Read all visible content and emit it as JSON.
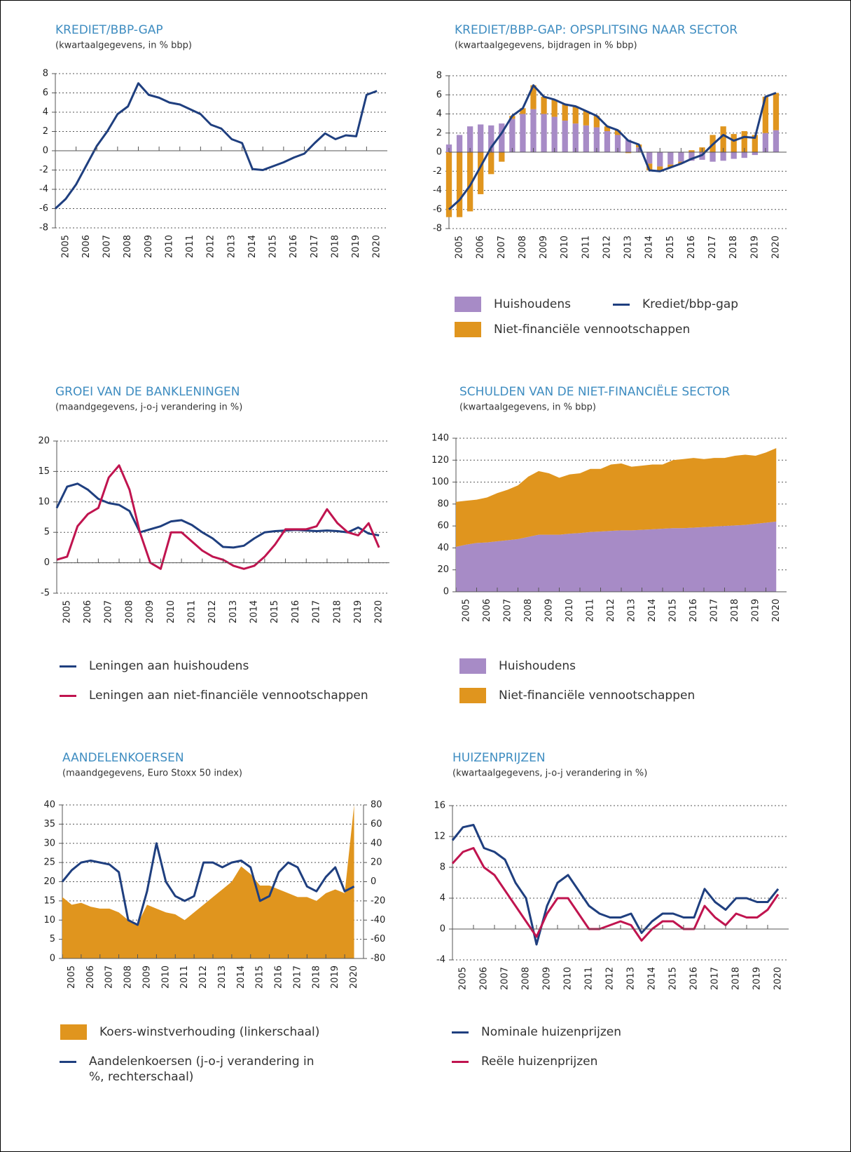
{
  "chart_data": [
    {
      "type": "line",
      "title": "KREDIET/BBP-GAP",
      "subtitle": "(kwartaalgegevens, in % bbp)",
      "x": [
        2005,
        2005.5,
        2006,
        2006.5,
        2007,
        2007.5,
        2008,
        2008.5,
        2009,
        2009.5,
        2010,
        2010.5,
        2011,
        2011.5,
        2012,
        2012.5,
        2013,
        2013.5,
        2014,
        2014.5,
        2015,
        2015.5,
        2016,
        2016.5,
        2017,
        2017.5,
        2018,
        2018.5,
        2019,
        2019.5,
        2020,
        2020.5
      ],
      "series": [
        {
          "color": "#1f3f7f",
          "values": [
            -6,
            -5,
            -3.5,
            -1.5,
            0.5,
            2,
            3.8,
            4.6,
            7,
            5.8,
            5.5,
            5,
            4.8,
            4.3,
            3.8,
            2.7,
            2.3,
            1.2,
            0.8,
            -1.9,
            -2,
            -1.6,
            -1.2,
            -0.7,
            -0.3,
            0.8,
            1.8,
            1.2,
            1.6,
            1.5,
            5.8,
            6.2
          ]
        }
      ],
      "xlim": [
        2005,
        2021
      ],
      "xticks": [
        2005,
        2006,
        2007,
        2008,
        2009,
        2010,
        2011,
        2012,
        2013,
        2014,
        2015,
        2016,
        2017,
        2018,
        2019,
        2020
      ],
      "ylim": [
        -8,
        8
      ],
      "yticks": [
        -8,
        -6,
        -4,
        -2,
        0,
        2,
        4,
        6,
        8
      ],
      "grid": true
    },
    {
      "type": "combo",
      "title": "KREDIET/BBP-GAP: OPSPLITSING NAAR SECTOR",
      "subtitle": "(kwartaalgegevens, bijdragen in % bbp)",
      "x": [
        2005,
        2005.5,
        2006,
        2006.5,
        2007,
        2007.5,
        2008,
        2008.5,
        2009,
        2009.5,
        2010,
        2010.5,
        2011,
        2011.5,
        2012,
        2012.5,
        2013,
        2013.5,
        2014,
        2014.5,
        2015,
        2015.5,
        2016,
        2016.5,
        2017,
        2017.5,
        2018,
        2018.5,
        2019,
        2019.5,
        2020,
        2020.5
      ],
      "series": [
        {
          "name": "Huishoudens",
          "style": "bar",
          "color": "#a78bc6",
          "values": [
            0.8,
            1.8,
            2.7,
            2.9,
            2.8,
            3,
            3.5,
            4,
            4.5,
            4,
            3.7,
            3.3,
            3,
            2.8,
            2.6,
            2.2,
            1.8,
            1.3,
            0.5,
            -1.2,
            -1.5,
            -1.3,
            -1,
            -0.9,
            -0.8,
            -1,
            -0.9,
            -0.7,
            -0.6,
            -0.3,
            2,
            2.3
          ]
        },
        {
          "name": "Niet-financiële vennootschappen",
          "style": "bar",
          "color": "#e0951e",
          "values": [
            -6.8,
            -6.8,
            -6.2,
            -4.4,
            -2.3,
            -1,
            0.3,
            0.6,
            2.5,
            1.8,
            1.8,
            1.7,
            1.8,
            1.5,
            1.2,
            0.5,
            0.5,
            -0.1,
            0.3,
            -0.7,
            -0.5,
            -0.3,
            -0.2,
            0.2,
            0.5,
            1.8,
            2.7,
            1.9,
            2.2,
            1.8,
            3.8,
            3.9
          ]
        },
        {
          "name": "Krediet/bbp-gap",
          "style": "line",
          "color": "#1f3f7f",
          "values": [
            -6,
            -5,
            -3.5,
            -1.5,
            0.5,
            2,
            3.8,
            4.6,
            7,
            5.8,
            5.5,
            5,
            4.8,
            4.3,
            3.8,
            2.7,
            2.3,
            1.2,
            0.8,
            -1.9,
            -2,
            -1.6,
            -1.2,
            -0.7,
            -0.3,
            0.8,
            1.8,
            1.2,
            1.6,
            1.5,
            5.8,
            6.2
          ]
        }
      ],
      "xlim": [
        2005,
        2021
      ],
      "xticks": [
        2005,
        2006,
        2007,
        2008,
        2009,
        2010,
        2011,
        2012,
        2013,
        2014,
        2015,
        2016,
        2017,
        2018,
        2019,
        2020
      ],
      "ylim": [
        -8,
        8
      ],
      "yticks": [
        -8,
        -6,
        -4,
        -2,
        0,
        2,
        4,
        6,
        8
      ],
      "grid": true
    },
    {
      "type": "line",
      "title": "GROEI VAN DE BANKLENINGEN",
      "subtitle": "(maandgegevens, j-o-j verandering in %)",
      "x": [
        2005,
        2005.5,
        2006,
        2006.5,
        2007,
        2007.5,
        2008,
        2008.5,
        2009,
        2009.5,
        2010,
        2010.5,
        2011,
        2011.5,
        2012,
        2012.5,
        2013,
        2013.5,
        2014,
        2014.5,
        2015,
        2015.5,
        2016,
        2016.5,
        2017,
        2017.5,
        2018,
        2018.5,
        2019,
        2019.5,
        2020,
        2020.5
      ],
      "series": [
        {
          "name": "Leningen aan huishoudens",
          "color": "#1f3f7f",
          "values": [
            9,
            12.5,
            13,
            12,
            10.5,
            9.8,
            9.5,
            8.5,
            5,
            5.5,
            6,
            6.8,
            7,
            6.2,
            5,
            4,
            2.6,
            2.5,
            2.8,
            4,
            5,
            5.2,
            5.3,
            5.4,
            5.3,
            5.2,
            5.3,
            5.2,
            5,
            5.8,
            4.8,
            4.5
          ]
        },
        {
          "name": "Leningen aan niet-financiële vennootschappen",
          "color": "#c0144f",
          "values": [
            0.5,
            1,
            6,
            8,
            9,
            14,
            16,
            12,
            5,
            0,
            -1,
            5,
            5,
            3.5,
            2,
            1,
            0.5,
            -0.5,
            -1,
            -0.5,
            1,
            3,
            5.5,
            5.5,
            5.5,
            6,
            8.8,
            6.5,
            5,
            4.5,
            6.5,
            2.5
          ]
        }
      ],
      "xlim": [
        2005,
        2021
      ],
      "xticks": [
        2005,
        2006,
        2007,
        2008,
        2009,
        2010,
        2011,
        2012,
        2013,
        2014,
        2015,
        2016,
        2017,
        2018,
        2019,
        2020
      ],
      "ylim": [
        -5,
        20
      ],
      "yticks": [
        -5,
        0,
        5,
        10,
        15,
        20
      ],
      "grid": true
    },
    {
      "type": "area",
      "stacked": true,
      "title": "SCHULDEN VAN DE NIET-FINANCIËLE SECTOR",
      "subtitle": "(kwartaalgegevens, in % bbp)",
      "x": [
        2005,
        2005.5,
        2006,
        2006.5,
        2007,
        2007.5,
        2008,
        2008.5,
        2009,
        2009.5,
        2010,
        2010.5,
        2011,
        2011.5,
        2012,
        2012.5,
        2013,
        2013.5,
        2014,
        2014.5,
        2015,
        2015.5,
        2016,
        2016.5,
        2017,
        2017.5,
        2018,
        2018.5,
        2019,
        2019.5,
        2020,
        2020.5
      ],
      "series": [
        {
          "name": "Huishoudens",
          "color": "#a78bc6",
          "values": [
            41,
            43,
            44.5,
            45,
            46,
            47,
            48,
            50,
            52,
            52,
            52,
            53,
            53.5,
            54.5,
            55,
            55.5,
            56,
            56,
            56.5,
            57,
            57.5,
            58,
            58,
            58.5,
            59,
            59.5,
            60,
            60.5,
            61,
            62,
            63,
            64
          ]
        },
        {
          "name": "Niet-financiële vennootschappen",
          "color": "#e0951e",
          "values": [
            41,
            40,
            39.5,
            41,
            44,
            46,
            49,
            55,
            58,
            56,
            52,
            54,
            54.5,
            57.5,
            57,
            60.5,
            61,
            58,
            58.5,
            59,
            58.5,
            62,
            63,
            63.5,
            62,
            62.5,
            62,
            63.5,
            64,
            62,
            64,
            67
          ]
        }
      ],
      "xlim": [
        2005,
        2021
      ],
      "xticks": [
        2005,
        2006,
        2007,
        2008,
        2009,
        2010,
        2011,
        2012,
        2013,
        2014,
        2015,
        2016,
        2017,
        2018,
        2019,
        2020
      ],
      "ylim": [
        0,
        140
      ],
      "yticks": [
        0,
        20,
        40,
        60,
        80,
        100,
        120,
        140
      ],
      "grid": true
    },
    {
      "type": "combo",
      "title": "AANDELENKOERSEN",
      "subtitle": "(maandgegevens, Euro Stoxx 50 index)",
      "x": [
        2005,
        2005.5,
        2006,
        2006.5,
        2007,
        2007.5,
        2008,
        2008.5,
        2009,
        2009.5,
        2010,
        2010.5,
        2011,
        2011.5,
        2012,
        2012.5,
        2013,
        2013.5,
        2014,
        2014.5,
        2015,
        2015.5,
        2016,
        2016.5,
        2017,
        2017.5,
        2018,
        2018.5,
        2019,
        2019.5,
        2020,
        2020.5
      ],
      "series": [
        {
          "name": "Koers-winstverhouding (linkerschaal)",
          "style": "area",
          "color": "#e0951e",
          "values": [
            16,
            14,
            14.5,
            13.5,
            13,
            13,
            12,
            10,
            9,
            14,
            13,
            12,
            11.5,
            10,
            12,
            14,
            16,
            18,
            20,
            24,
            22,
            19,
            19,
            18,
            17,
            16,
            16,
            15,
            17,
            18,
            17,
            40
          ]
        },
        {
          "name": "Aandelenkoersen (j-o-j verandering in %, rechterschaal)",
          "style": "line",
          "axis": "y2",
          "color": "#1f3f7f",
          "values": [
            0,
            12,
            20,
            22,
            20,
            18,
            10,
            -40,
            -45,
            -10,
            40,
            0,
            -15,
            -20,
            -15,
            20,
            20,
            15,
            20,
            22,
            15,
            -20,
            -15,
            10,
            20,
            15,
            -5,
            -10,
            5,
            15,
            -10,
            -5
          ]
        }
      ],
      "xlim": [
        2005,
        2021
      ],
      "xticks": [
        2005,
        2006,
        2007,
        2008,
        2009,
        2010,
        2011,
        2012,
        2013,
        2014,
        2015,
        2016,
        2017,
        2018,
        2019,
        2020
      ],
      "ylim": [
        0,
        40
      ],
      "yticks": [
        0,
        5,
        10,
        15,
        20,
        25,
        30,
        35,
        40
      ],
      "y2lim": [
        -80,
        80
      ],
      "y2ticks": [
        -80,
        -60,
        -40,
        -20,
        0,
        20,
        40,
        60,
        80
      ],
      "grid": true
    },
    {
      "type": "line",
      "title": "HUIZENPRIJZEN",
      "subtitle": "(kwartaalgegevens, j-o-j verandering in %)",
      "x": [
        2005,
        2005.5,
        2006,
        2006.5,
        2007,
        2007.5,
        2008,
        2008.5,
        2009,
        2009.5,
        2010,
        2010.5,
        2011,
        2011.5,
        2012,
        2012.5,
        2013,
        2013.5,
        2014,
        2014.5,
        2015,
        2015.5,
        2016,
        2016.5,
        2017,
        2017.5,
        2018,
        2018.5,
        2019,
        2019.5,
        2020,
        2020.5
      ],
      "series": [
        {
          "name": "Nominale huizenprijzen",
          "color": "#1f3f7f",
          "values": [
            11.5,
            13.2,
            13.5,
            10.5,
            10,
            9,
            6,
            4,
            -2,
            3,
            6,
            7,
            5,
            3,
            2,
            1.5,
            1.5,
            2,
            -0.5,
            1,
            2,
            2,
            1.5,
            1.5,
            5.2,
            3.5,
            2.5,
            4,
            4,
            3.5,
            3.5,
            5.2
          ]
        },
        {
          "name": "Reële huizenprijzen",
          "color": "#c0144f",
          "values": [
            8.5,
            10,
            10.5,
            8,
            7,
            5,
            3,
            1,
            -1,
            2,
            4,
            4,
            2,
            0,
            0,
            0.5,
            1,
            0.5,
            -1.5,
            0,
            1,
            1,
            0,
            0,
            3,
            1.5,
            0.5,
            2,
            1.5,
            1.5,
            2.5,
            4.5
          ]
        }
      ],
      "xlim": [
        2005,
        2021
      ],
      "xticks": [
        2005,
        2006,
        2007,
        2008,
        2009,
        2010,
        2011,
        2012,
        2013,
        2014,
        2015,
        2016,
        2017,
        2018,
        2019,
        2020
      ],
      "ylim": [
        -4,
        16
      ],
      "yticks": [
        -4,
        0,
        4,
        8,
        12,
        16
      ],
      "grid": true
    }
  ]
}
